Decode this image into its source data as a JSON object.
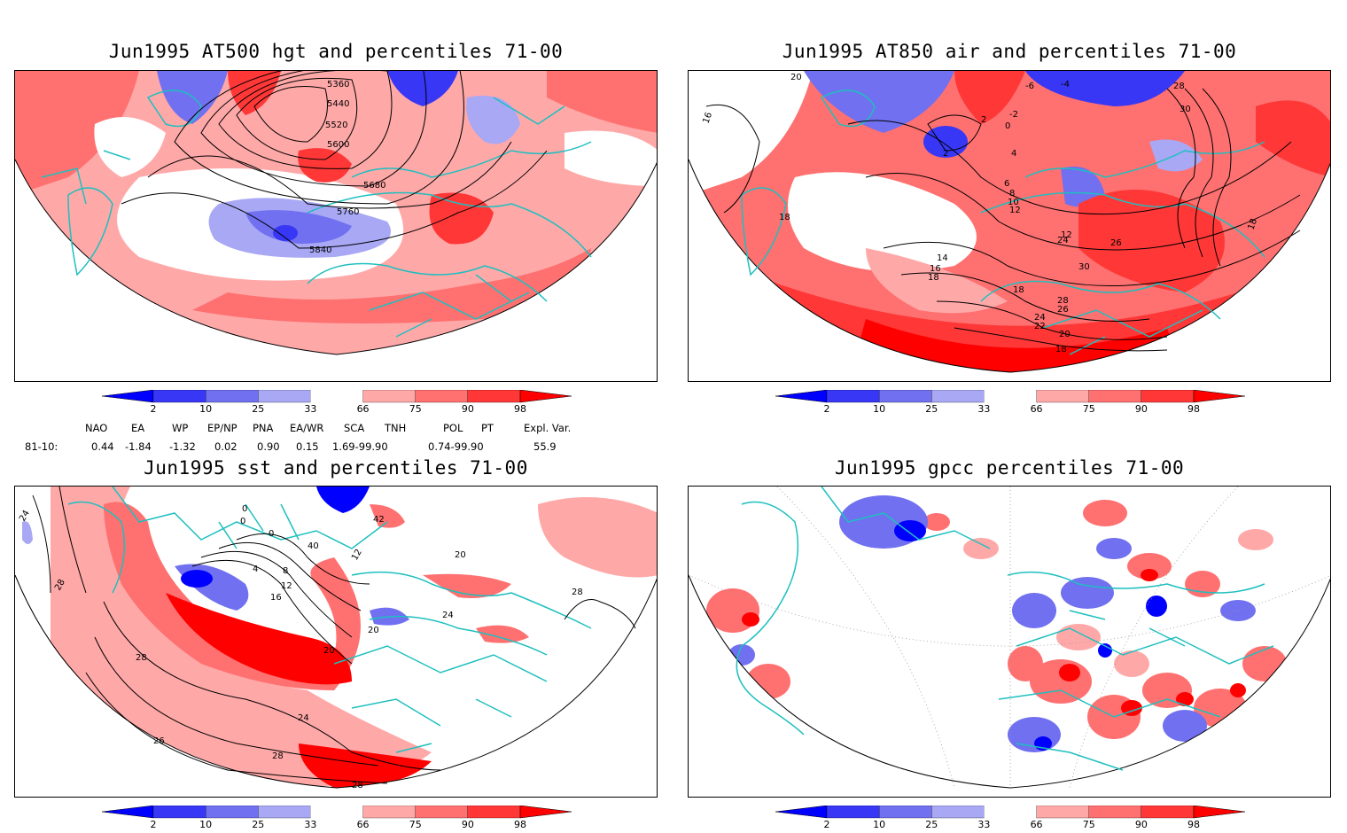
{
  "panels": [
    {
      "title": "Jun1995 AT500 hgt and percentiles 71-00",
      "contour_labels": [
        "5360",
        "5440",
        "5520",
        "5600",
        "5680",
        "5760",
        "5840"
      ]
    },
    {
      "title": "Jun1995 AT850 air and percentiles 71-00",
      "contour_labels": [
        "20",
        "16",
        "18",
        "-6",
        "-4",
        "2",
        "-2",
        "0",
        "2",
        "4",
        "6",
        "8",
        "10",
        "12",
        "14",
        "16",
        "18",
        "24",
        "26",
        "30",
        "28",
        "30",
        "18",
        "26",
        "24",
        "22",
        "20",
        "18",
        "28",
        "18",
        "12"
      ]
    },
    {
      "title": "Jun1995 sst and percentiles 71-00",
      "contour_labels": [
        "24",
        "28",
        "0",
        "0",
        "0",
        "42",
        "40",
        "4",
        "8",
        "12",
        "16",
        "20",
        "28",
        "24",
        "26",
        "28",
        "28",
        "20",
        "24",
        "20",
        "28",
        "12"
      ]
    },
    {
      "title": "Jun1995 gpcc percentiles 71-00",
      "contour_labels": []
    }
  ],
  "colorbar": {
    "ticks": [
      "2",
      "10",
      "25",
      "33",
      "66",
      "75",
      "90",
      "98"
    ],
    "colors": [
      "#0000ff",
      "#3737f5",
      "#7070f0",
      "#a8a8f5",
      "#ffffff",
      "#ffa8a8",
      "#ff7070",
      "#ff3737",
      "#ff0000"
    ]
  },
  "indices": {
    "headers": [
      "NAO",
      "EA",
      "WP",
      "EP/NP",
      "PNA",
      "EA/WR",
      "SCA",
      "TNH",
      "POL",
      "PT",
      "Expl. Var."
    ],
    "row_label": "81-10:",
    "values": [
      "0.44",
      "-1.84",
      "-1.32",
      "0.02",
      "0.90",
      "0.15",
      "1.69-99.90",
      "0.74-99.90",
      "55.9"
    ]
  },
  "colors": {
    "coast": "#1fbfbf",
    "contour": "#000000",
    "strong_red": "#ff0000",
    "mid_red": "#ff7070",
    "light_red": "#ffa8a8",
    "strong_blue": "#0000ff",
    "mid_blue": "#7070f0",
    "light_blue": "#a8a8f5"
  }
}
